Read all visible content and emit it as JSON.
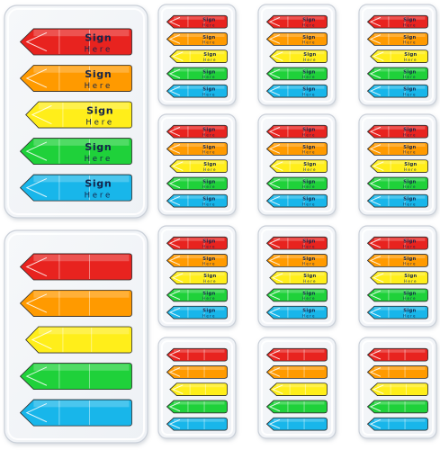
{
  "product": {
    "flag_text_line1": "Sign",
    "flag_text_line2": "Here"
  },
  "colors": {
    "background": "#ffffff",
    "tray": "#eef1f5",
    "tray_edge": "#c9cfd8",
    "flags": [
      "#e8231f",
      "#ff9a00",
      "#ffee1a",
      "#1fd13a",
      "#18b6ea"
    ],
    "flag_text": "#14244a"
  },
  "packs": [
    {
      "group": "large",
      "printed": true
    },
    {
      "group": "large",
      "printed": false
    },
    {
      "group": "small",
      "printed": true
    },
    {
      "group": "small",
      "printed": true
    },
    {
      "group": "small",
      "printed": true
    },
    {
      "group": "small",
      "printed": true
    },
    {
      "group": "small",
      "printed": true
    },
    {
      "group": "small",
      "printed": true
    },
    {
      "group": "small",
      "printed": true
    },
    {
      "group": "small",
      "printed": true
    },
    {
      "group": "small",
      "printed": true
    },
    {
      "group": "small",
      "printed": false
    },
    {
      "group": "small",
      "printed": false
    },
    {
      "group": "small",
      "printed": false
    }
  ]
}
